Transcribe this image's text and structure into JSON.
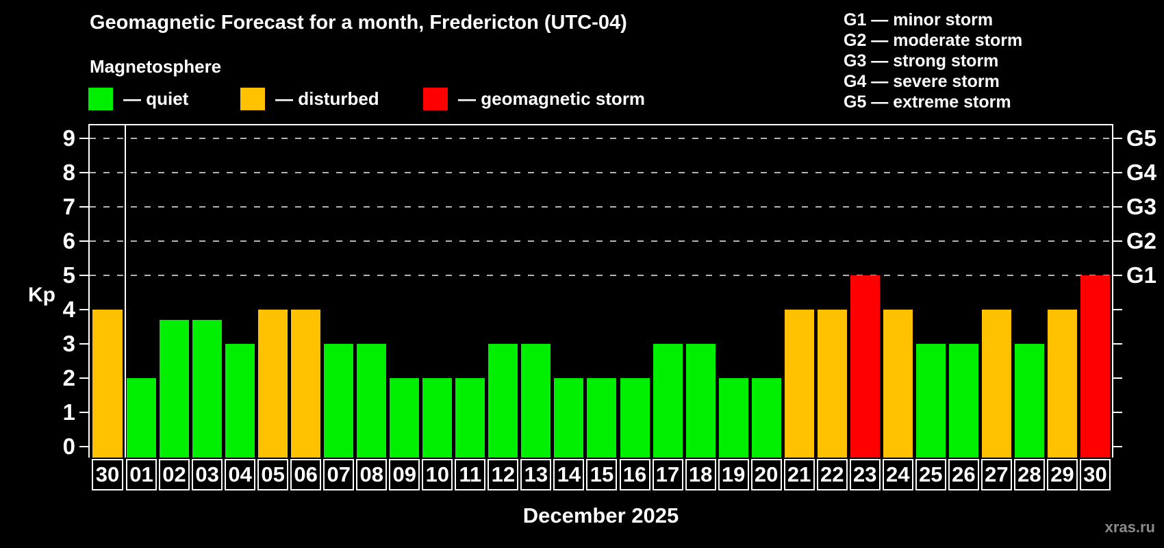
{
  "title": "Geomagnetic Forecast for a month, Fredericton (UTC-04)",
  "subtitle": "Magnetosphere",
  "legend": {
    "items": [
      {
        "id": "quiet",
        "label": "— quiet",
        "color": "#00ee00"
      },
      {
        "id": "disturbed",
        "label": "— disturbed",
        "color": "#ffc100"
      },
      {
        "id": "storm",
        "label": "— geomagnetic storm",
        "color": "#ff0000"
      }
    ]
  },
  "g_scale": [
    "G1 — minor storm",
    "G2 — moderate storm",
    "G3 — strong storm",
    "G4 — severe storm",
    "G5 — extreme storm"
  ],
  "watermark": "xras.ru",
  "chart_data": {
    "type": "bar",
    "title": "Geomagnetic Forecast for a month, Fredericton (UTC-04)",
    "xlabel": "December 2025",
    "ylabel": "Kp",
    "ylim": [
      0,
      9
    ],
    "yticks": [
      0,
      1,
      2,
      3,
      4,
      5,
      6,
      7,
      8,
      9
    ],
    "grid": "dashed horizontal lines at G-storm levels only",
    "grid_levels": [
      5,
      6,
      7,
      8,
      9
    ],
    "legend_position": "top-left",
    "right_axis": [
      {
        "kp": 5,
        "label": "G1"
      },
      {
        "kp": 6,
        "label": "G2"
      },
      {
        "kp": 7,
        "label": "G3"
      },
      {
        "kp": 8,
        "label": "G4"
      },
      {
        "kp": 9,
        "label": "G5"
      }
    ],
    "categories": [
      "30",
      "01",
      "02",
      "03",
      "04",
      "05",
      "06",
      "07",
      "08",
      "09",
      "10",
      "11",
      "12",
      "13",
      "14",
      "15",
      "16",
      "17",
      "18",
      "19",
      "20",
      "21",
      "22",
      "23",
      "24",
      "25",
      "26",
      "27",
      "28",
      "29",
      "30"
    ],
    "values": [
      4,
      2,
      3.7,
      3.7,
      3,
      4,
      4,
      3,
      3,
      2,
      2,
      2,
      3,
      3,
      2,
      2,
      2,
      3,
      3,
      2,
      2,
      4,
      4,
      5,
      4,
      3,
      3,
      4,
      3,
      4,
      5
    ],
    "statuses": [
      "disturbed",
      "quiet",
      "quiet",
      "quiet",
      "quiet",
      "disturbed",
      "disturbed",
      "quiet",
      "quiet",
      "quiet",
      "quiet",
      "quiet",
      "quiet",
      "quiet",
      "quiet",
      "quiet",
      "quiet",
      "quiet",
      "quiet",
      "quiet",
      "quiet",
      "disturbed",
      "disturbed",
      "storm",
      "disturbed",
      "quiet",
      "quiet",
      "disturbed",
      "quiet",
      "disturbed",
      "storm"
    ],
    "status_colors": {
      "quiet": "#00ee00",
      "disturbed": "#ffc100",
      "storm": "#ff0000"
    },
    "prev_month_bar_index": 0,
    "separator_after_index": 0
  }
}
